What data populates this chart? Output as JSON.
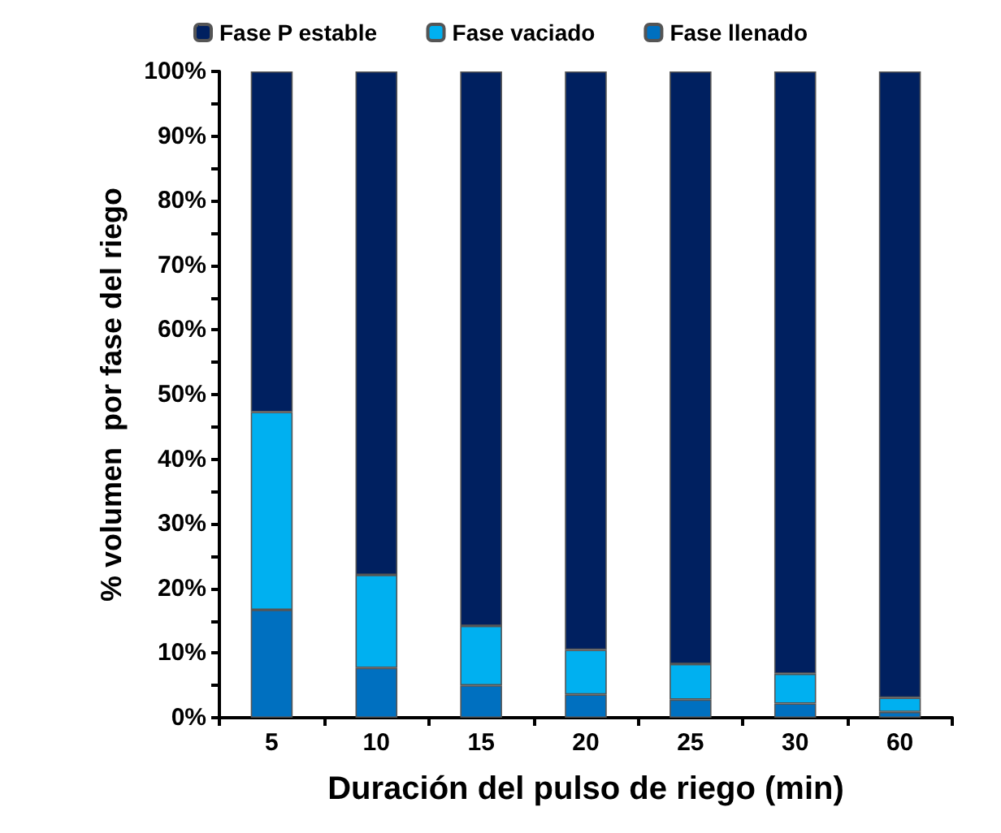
{
  "chart_data": {
    "type": "bar",
    "stacked": true,
    "xlabel": "Duración del pulso de riego (min)",
    "ylabel": "% volumen  por fase del riego",
    "categories": [
      "5",
      "10",
      "15",
      "20",
      "25",
      "30",
      "60"
    ],
    "series": [
      {
        "name": "Fase llenado",
        "color": "#0070c0",
        "values": [
          16.7,
          7.7,
          5.0,
          3.6,
          2.8,
          2.2,
          0.9
        ]
      },
      {
        "name": "Fase vaciado",
        "color": "#00b0f0",
        "values": [
          30.6,
          14.4,
          9.2,
          6.9,
          5.5,
          4.6,
          2.2
        ]
      },
      {
        "name": "Fase P estable",
        "color": "#002060",
        "values": [
          52.7,
          77.9,
          85.8,
          89.5,
          91.7,
          93.2,
          96.9
        ]
      }
    ],
    "ylim": [
      0,
      100
    ],
    "yticks": [
      {
        "value": 0,
        "label": "0%"
      },
      {
        "value": 5,
        "label": null
      },
      {
        "value": 10,
        "label": "10%"
      },
      {
        "value": 15,
        "label": null
      },
      {
        "value": 20,
        "label": "20%"
      },
      {
        "value": 25,
        "label": null
      },
      {
        "value": 30,
        "label": "30%"
      },
      {
        "value": 35,
        "label": null
      },
      {
        "value": 40,
        "label": "40%"
      },
      {
        "value": 45,
        "label": null
      },
      {
        "value": 50,
        "label": "50%"
      },
      {
        "value": 55,
        "label": null
      },
      {
        "value": 60,
        "label": "60%"
      },
      {
        "value": 65,
        "label": null
      },
      {
        "value": 70,
        "label": "70%"
      },
      {
        "value": 75,
        "label": null
      },
      {
        "value": 80,
        "label": "80%"
      },
      {
        "value": 85,
        "label": null
      },
      {
        "value": 90,
        "label": "90%"
      },
      {
        "value": 95,
        "label": null
      },
      {
        "value": 100,
        "label": "100%"
      }
    ],
    "grid": false,
    "legend": "top"
  }
}
